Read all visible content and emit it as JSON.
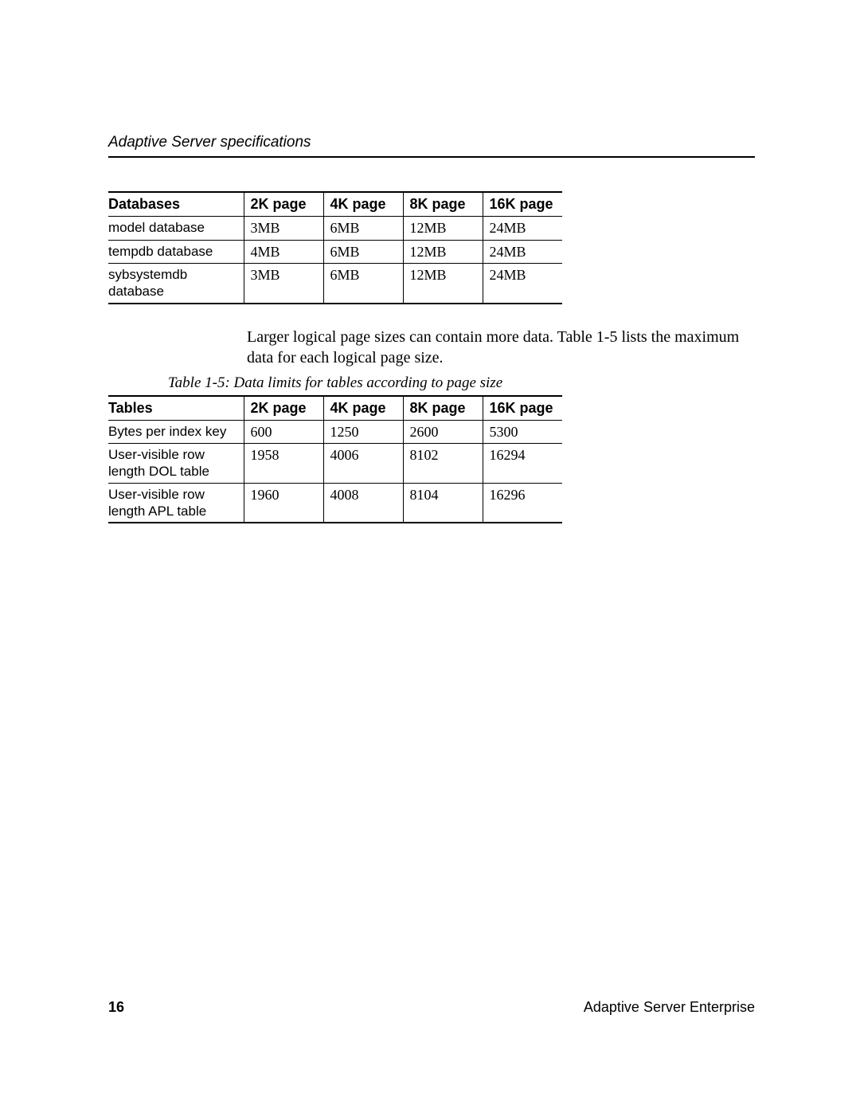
{
  "header": {
    "running_title": "Adaptive Server specifications"
  },
  "table1": {
    "columns": [
      "Databases",
      "2K page",
      "4K page",
      "8K page",
      "16K page"
    ],
    "rows": [
      [
        "model database",
        "3MB",
        "6MB",
        "12MB",
        "24MB"
      ],
      [
        "tempdb database",
        "4MB",
        "6MB",
        "12MB",
        "24MB"
      ],
      [
        "sybsystemdb database",
        "3MB",
        "6MB",
        "12MB",
        "24MB"
      ]
    ]
  },
  "paragraph": "Larger logical page sizes can contain more data. Table 1-5 lists the maximum data for each logical page size.",
  "table2": {
    "caption": "Table 1-5: Data limits for tables according to page size",
    "columns": [
      "Tables",
      "2K page",
      "4K page",
      "8K page",
      "16K page"
    ],
    "rows": [
      [
        "Bytes per index key",
        "600",
        "1250",
        "2600",
        "5300"
      ],
      [
        "User-visible row length DOL table",
        "1958",
        "4006",
        "8102",
        "16294"
      ],
      [
        "User-visible row length APL table",
        "1960",
        "4008",
        "8104",
        "16296"
      ]
    ]
  },
  "footer": {
    "page_number": "16",
    "book_title": "Adaptive Server Enterprise"
  }
}
